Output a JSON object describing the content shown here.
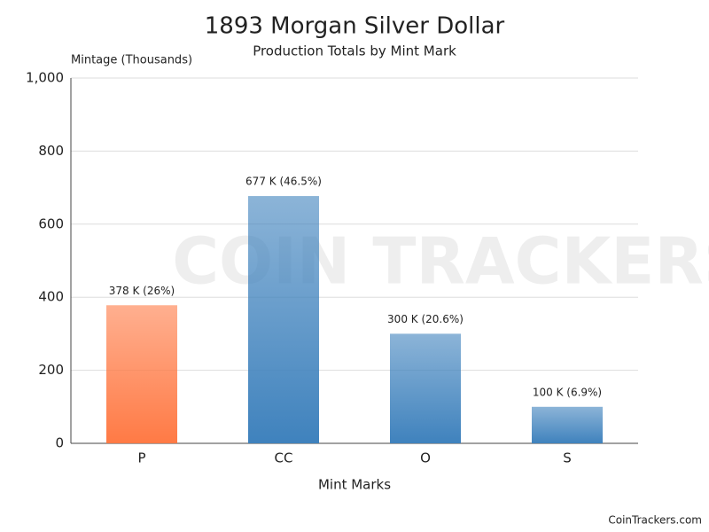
{
  "chart_data": {
    "type": "bar",
    "title": "1893 Morgan Silver Dollar",
    "subtitle": "Production Totals by Mint Mark",
    "y_axis_label": "Mintage (Thousands)",
    "x_axis_label": "Mint Marks",
    "categories": [
      "P",
      "CC",
      "O",
      "S"
    ],
    "values": [
      378,
      677,
      300,
      100
    ],
    "value_labels": [
      "378 K (26%)",
      "677 K (46.5%)",
      "300 K (20.6%)",
      "100 K (6.9%)"
    ],
    "colors": [
      "#ff7a45",
      "#3f82bd",
      "#3f82bd",
      "#3f82bd"
    ],
    "ylim": [
      0,
      1000
    ],
    "yticks": [
      0,
      200,
      400,
      600,
      800,
      {
        "value": 1000,
        "label": "1,000"
      }
    ],
    "grid": true,
    "watermark": "COIN TRACKERS",
    "credits": "CoinTrackers.com"
  }
}
